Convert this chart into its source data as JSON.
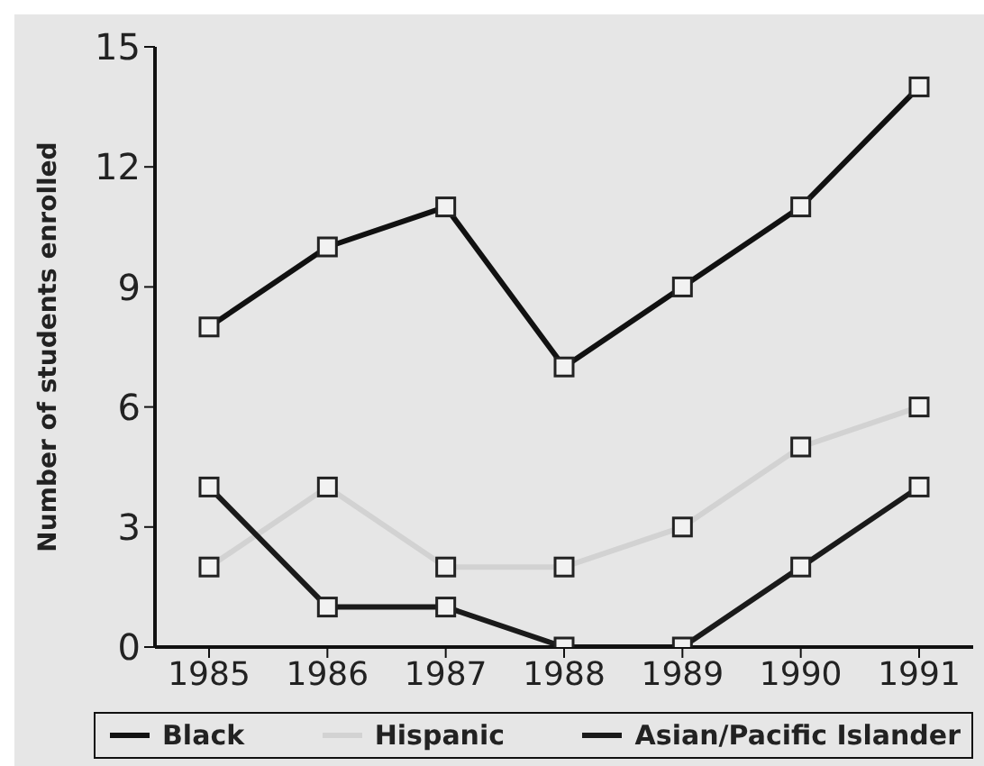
{
  "chart_data": {
    "type": "line",
    "ylabel": "Number of students enrolled",
    "categories": [
      "1985",
      "1986",
      "1987",
      "1988",
      "1989",
      "1990",
      "1991"
    ],
    "series": [
      {
        "name": "Black",
        "color": "#111111",
        "values": [
          8,
          10,
          11,
          7,
          9,
          11,
          14
        ]
      },
      {
        "name": "Hispanic",
        "color": "#d2d2d2",
        "values": [
          2,
          4,
          2,
          2,
          3,
          5,
          6
        ]
      },
      {
        "name": "Asian/Pacific Islander",
        "color": "#1a1a1a",
        "values": [
          4,
          1,
          1,
          0,
          0,
          2,
          4
        ]
      }
    ],
    "ylim": [
      0,
      15
    ],
    "yticks": [
      0,
      3,
      6,
      9,
      12,
      15
    ],
    "grid": false,
    "legend": "bottom",
    "marker": "square",
    "line_style": "solid"
  }
}
